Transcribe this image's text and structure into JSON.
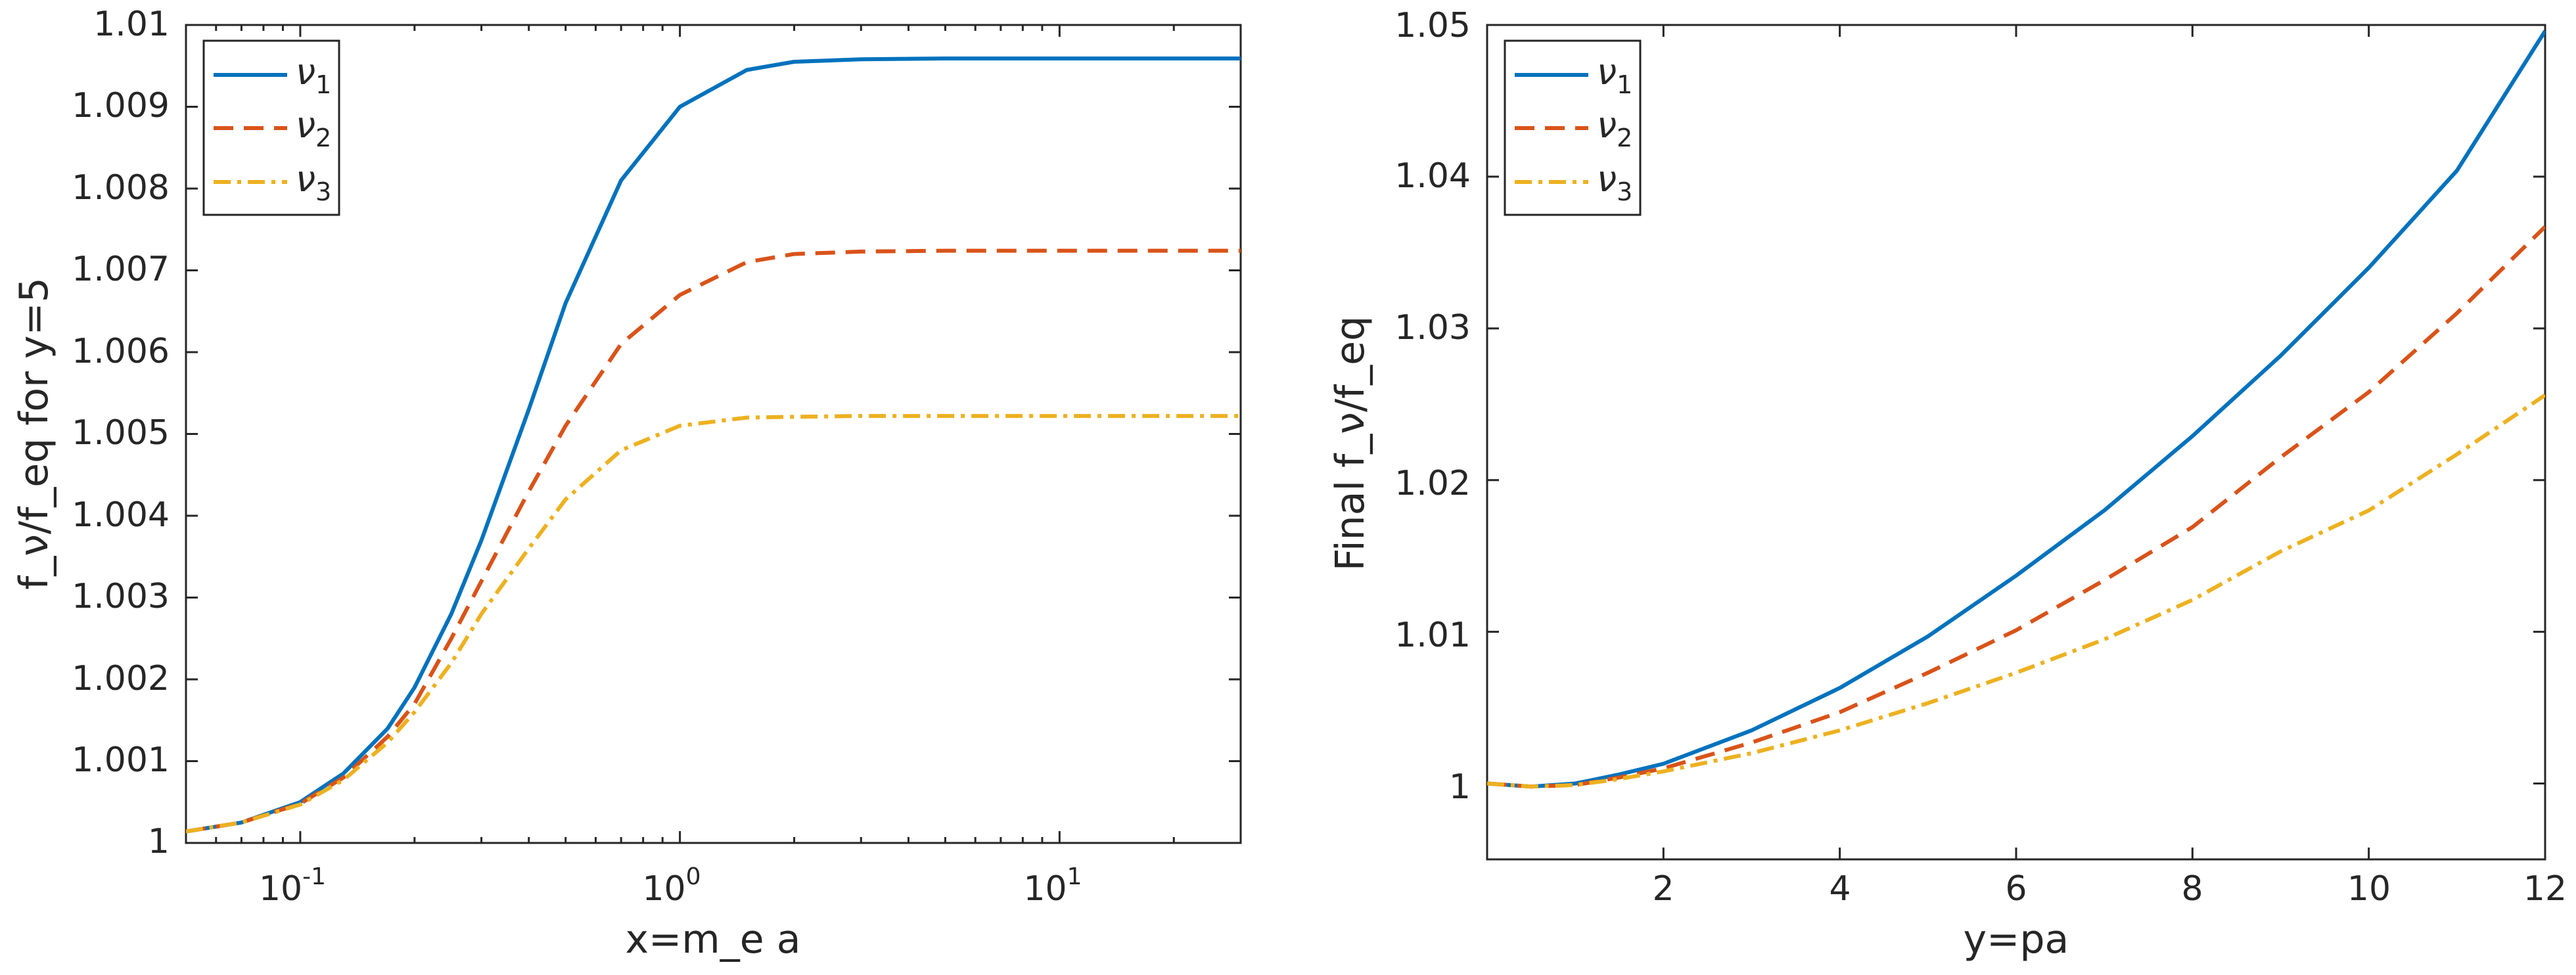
{
  "chart_data": [
    {
      "type": "line",
      "xscale": "log",
      "xlabel": "x=m_e a",
      "ylabel": "f_ν/f_eq  for y=5",
      "xlim": [
        0.05,
        30
      ],
      "ylim": [
        1.0,
        1.01
      ],
      "ytick_labels": [
        "1",
        "1.001",
        "1.002",
        "1.003",
        "1.004",
        "1.005",
        "1.006",
        "1.007",
        "1.008",
        "1.009",
        "1.01"
      ],
      "xtick_labels": [
        {
          "base": "10",
          "exp": "-1"
        },
        {
          "base": "10",
          "exp": "0"
        },
        {
          "base": "10",
          "exp": "1"
        }
      ],
      "legend_position": "top-left",
      "series": [
        {
          "name": "ν",
          "sub": "1",
          "color": "#0072BD",
          "dash": "solid",
          "x": [
            0.05,
            0.07,
            0.1,
            0.13,
            0.17,
            0.2,
            0.25,
            0.3,
            0.4,
            0.5,
            0.7,
            1.0,
            1.5,
            2,
            3,
            5,
            10,
            30
          ],
          "y": [
            1.00014,
            1.00025,
            1.0005,
            1.00085,
            1.0014,
            1.0019,
            1.0028,
            1.0037,
            1.0053,
            1.0066,
            1.0081,
            1.009,
            1.00945,
            1.00955,
            1.00958,
            1.00959,
            1.00959,
            1.00959
          ]
        },
        {
          "name": "ν",
          "sub": "2",
          "color": "#D95319",
          "dash": "dashed",
          "x": [
            0.05,
            0.07,
            0.1,
            0.13,
            0.17,
            0.2,
            0.25,
            0.3,
            0.4,
            0.5,
            0.7,
            1.0,
            1.5,
            2,
            3,
            5,
            10,
            30
          ],
          "y": [
            1.00014,
            1.00025,
            1.00048,
            1.0008,
            1.0013,
            1.0017,
            1.0025,
            1.0032,
            1.0043,
            1.0051,
            1.0061,
            1.0067,
            1.0071,
            1.0072,
            1.00723,
            1.00724,
            1.00724,
            1.00724
          ]
        },
        {
          "name": "ν",
          "sub": "3",
          "color": "#EDB120",
          "dash": "dashdot",
          "x": [
            0.05,
            0.07,
            0.1,
            0.13,
            0.17,
            0.2,
            0.25,
            0.3,
            0.4,
            0.5,
            0.7,
            1.0,
            1.5,
            2,
            3,
            5,
            10,
            30
          ],
          "y": [
            1.00014,
            1.00025,
            1.00047,
            1.00077,
            1.00123,
            1.0016,
            1.0022,
            1.0028,
            1.0036,
            1.0042,
            1.0048,
            1.0051,
            1.0052,
            1.00521,
            1.00522,
            1.00522,
            1.00522,
            1.00522
          ]
        }
      ]
    },
    {
      "type": "line",
      "xscale": "linear",
      "xlabel": "y=pa",
      "ylabel": "Final f_ν/f_eq",
      "xlim": [
        0,
        12
      ],
      "ylim": [
        0.995,
        1.05
      ],
      "ytick_labels": [
        "1",
        "1.01",
        "1.02",
        "1.03",
        "1.04",
        "1.05"
      ],
      "xtick_labels": [
        "2",
        "4",
        "6",
        "8",
        "10",
        "12"
      ],
      "legend_position": "top-left",
      "series": [
        {
          "name": "ν",
          "sub": "1",
          "color": "#0072BD",
          "dash": "solid",
          "x": [
            0,
            0.5,
            1,
            1.5,
            2,
            3,
            4,
            5,
            6,
            7,
            8,
            9,
            10,
            11,
            12
          ],
          "y": [
            1.0,
            0.9998,
            1.0,
            1.0006,
            1.0013,
            1.0035,
            1.0063,
            1.0097,
            1.0137,
            1.018,
            1.0229,
            1.0282,
            1.034,
            1.0404,
            1.0496
          ]
        },
        {
          "name": "ν",
          "sub": "2",
          "color": "#D95319",
          "dash": "dashed",
          "x": [
            0,
            0.5,
            1,
            1.5,
            2,
            3,
            4,
            5,
            6,
            7,
            8,
            9,
            10,
            11,
            12
          ],
          "y": [
            1.0,
            0.9998,
            0.9999,
            1.0004,
            1.001,
            1.0027,
            1.0047,
            1.0073,
            1.0101,
            1.0134,
            1.0169,
            1.0215,
            1.0258,
            1.031,
            1.0367
          ]
        },
        {
          "name": "ν",
          "sub": "3",
          "color": "#EDB120",
          "dash": "dashdot",
          "x": [
            0,
            0.5,
            1,
            1.5,
            2,
            3,
            4,
            5,
            6,
            7,
            8,
            9,
            10,
            11,
            12
          ],
          "y": [
            1.0,
            0.9998,
            0.9999,
            1.0003,
            1.0008,
            1.002,
            1.0035,
            1.0053,
            1.0073,
            1.0095,
            1.0121,
            1.0153,
            1.018,
            1.0217,
            1.0256
          ]
        }
      ]
    }
  ]
}
